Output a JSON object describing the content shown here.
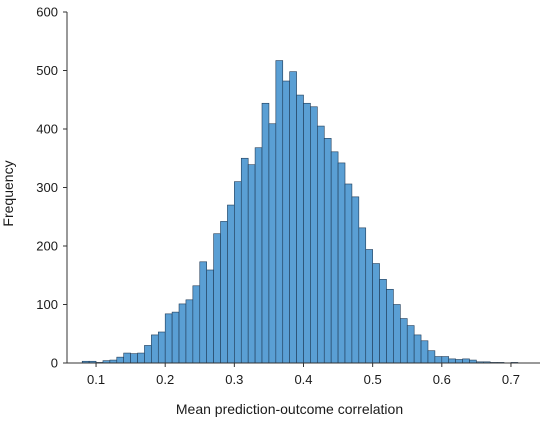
{
  "chart_data": {
    "type": "bar",
    "title": "",
    "xlabel": "Mean prediction-outcome correlation",
    "ylabel": "Frequency",
    "xlim": [
      0.058,
      0.742
    ],
    "ylim": [
      0,
      600
    ],
    "xticks": [
      0.1,
      0.2,
      0.3,
      0.4,
      0.5,
      0.6,
      0.7
    ],
    "yticks": [
      0,
      100,
      200,
      300,
      400,
      500,
      600
    ],
    "xtick_labels": [
      "0.1",
      "0.2",
      "0.3",
      "0.4",
      "0.5",
      "0.6",
      "0.7"
    ],
    "ytick_labels": [
      "0",
      "100",
      "200",
      "300",
      "400",
      "500",
      "600"
    ],
    "grid": false,
    "color": "#5a9fd4",
    "edge_color": "#1f3b57",
    "bin_width": 0.01,
    "bin_starts": [
      0.08,
      0.09,
      0.1,
      0.11,
      0.12,
      0.13,
      0.14,
      0.15,
      0.16,
      0.17,
      0.18,
      0.19,
      0.2,
      0.21,
      0.22,
      0.23,
      0.24,
      0.25,
      0.26,
      0.27,
      0.28,
      0.29,
      0.3,
      0.31,
      0.32,
      0.33,
      0.34,
      0.35,
      0.36,
      0.37,
      0.38,
      0.39,
      0.4,
      0.41,
      0.42,
      0.43,
      0.44,
      0.45,
      0.46,
      0.47,
      0.48,
      0.49,
      0.5,
      0.51,
      0.52,
      0.53,
      0.54,
      0.55,
      0.56,
      0.57,
      0.58,
      0.59,
      0.6,
      0.61,
      0.62,
      0.63,
      0.64,
      0.65,
      0.66,
      0.67,
      0.68,
      0.69,
      0.7
    ],
    "values": [
      3,
      3,
      1,
      4,
      5,
      10,
      17,
      16,
      17,
      30,
      48,
      53,
      84,
      87,
      101,
      108,
      132,
      173,
      159,
      221,
      242,
      270,
      310,
      350,
      339,
      368,
      444,
      409,
      517,
      482,
      498,
      458,
      444,
      438,
      405,
      384,
      361,
      342,
      306,
      284,
      231,
      194,
      170,
      143,
      126,
      100,
      76,
      64,
      48,
      38,
      21,
      11,
      11,
      7,
      6,
      7,
      5,
      2,
      2,
      1,
      1,
      0,
      1
    ]
  }
}
